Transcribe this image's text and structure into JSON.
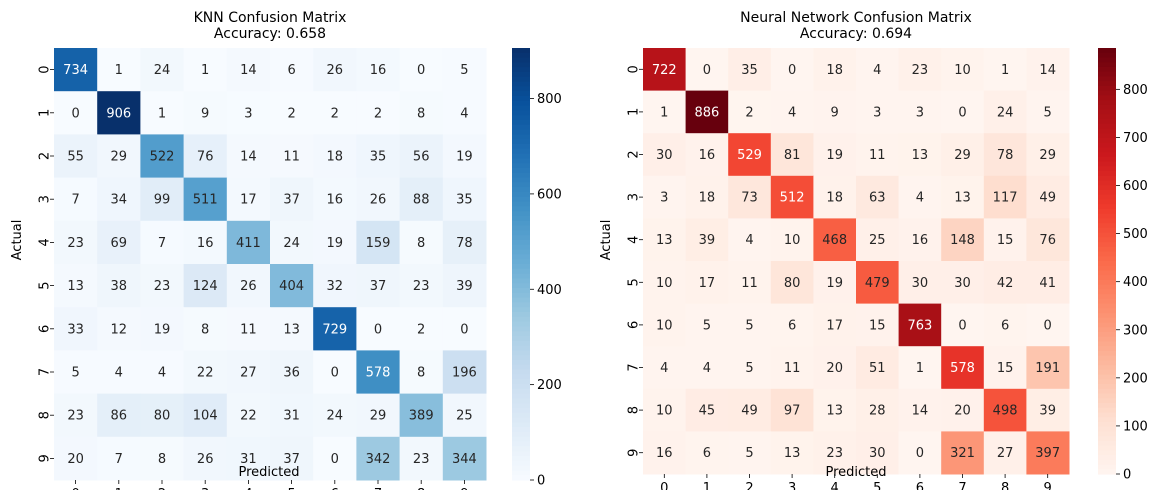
{
  "figure": {
    "background": "#ffffff"
  },
  "chart_data": [
    {
      "type": "heatmap",
      "title": "KNN Confusion Matrix",
      "subtitle": "Accuracy: 0.658",
      "xlabel": "Predicted",
      "ylabel": "Actual",
      "x_categories": [
        "0",
        "1",
        "2",
        "3",
        "4",
        "5",
        "6",
        "7",
        "8",
        "9"
      ],
      "y_categories": [
        "0",
        "1",
        "2",
        "3",
        "4",
        "5",
        "6",
        "7",
        "8",
        "9"
      ],
      "colormap": "Blues",
      "vmin": 0,
      "vmax": 906,
      "colorbar_ticks": [
        0,
        200,
        400,
        600,
        800
      ],
      "grid": false,
      "matrix": [
        [
          734,
          1,
          24,
          1,
          14,
          6,
          26,
          16,
          0,
          5
        ],
        [
          0,
          906,
          1,
          9,
          3,
          2,
          2,
          2,
          8,
          4
        ],
        [
          55,
          29,
          522,
          76,
          14,
          11,
          18,
          35,
          56,
          19
        ],
        [
          7,
          34,
          99,
          511,
          17,
          37,
          16,
          26,
          88,
          35
        ],
        [
          23,
          69,
          7,
          16,
          411,
          24,
          19,
          159,
          8,
          78
        ],
        [
          13,
          38,
          23,
          124,
          26,
          404,
          32,
          37,
          23,
          39
        ],
        [
          33,
          12,
          19,
          8,
          11,
          13,
          729,
          0,
          2,
          0
        ],
        [
          5,
          4,
          4,
          22,
          27,
          36,
          0,
          578,
          8,
          196
        ],
        [
          23,
          86,
          80,
          104,
          22,
          31,
          24,
          29,
          389,
          25
        ],
        [
          20,
          7,
          8,
          26,
          31,
          37,
          0,
          342,
          23,
          344
        ]
      ]
    },
    {
      "type": "heatmap",
      "title": "Neural Network Confusion Matrix",
      "subtitle": "Accuracy: 0.694",
      "xlabel": "Predicted",
      "ylabel": "Actual",
      "x_categories": [
        "0",
        "1",
        "2",
        "3",
        "4",
        "5",
        "6",
        "7",
        "8",
        "9"
      ],
      "y_categories": [
        "0",
        "1",
        "2",
        "3",
        "4",
        "5",
        "6",
        "7",
        "8",
        "9"
      ],
      "colormap": "Reds",
      "vmin": 0,
      "vmax": 886,
      "colorbar_ticks": [
        0,
        100,
        200,
        300,
        400,
        500,
        600,
        700,
        800
      ],
      "grid": false,
      "matrix": [
        [
          722,
          0,
          35,
          0,
          18,
          4,
          23,
          10,
          1,
          14
        ],
        [
          1,
          886,
          2,
          4,
          9,
          3,
          3,
          0,
          24,
          5
        ],
        [
          30,
          16,
          529,
          81,
          19,
          11,
          13,
          29,
          78,
          29
        ],
        [
          3,
          18,
          73,
          512,
          18,
          63,
          4,
          13,
          117,
          49
        ],
        [
          13,
          39,
          4,
          10,
          468,
          25,
          16,
          148,
          15,
          76
        ],
        [
          10,
          17,
          11,
          80,
          19,
          479,
          30,
          30,
          42,
          41
        ],
        [
          10,
          5,
          5,
          6,
          17,
          15,
          763,
          0,
          6,
          0
        ],
        [
          4,
          4,
          5,
          11,
          20,
          51,
          1,
          578,
          15,
          191
        ],
        [
          10,
          45,
          49,
          97,
          13,
          28,
          14,
          20,
          498,
          39
        ],
        [
          16,
          6,
          5,
          13,
          23,
          30,
          0,
          321,
          27,
          397
        ]
      ]
    }
  ]
}
